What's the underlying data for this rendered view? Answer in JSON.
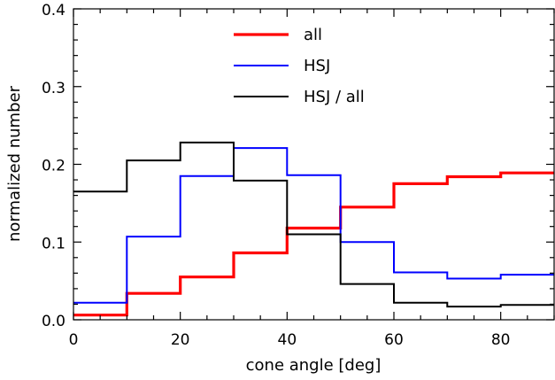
{
  "chart_data": {
    "type": "line",
    "step": true,
    "xlabel": "cone angle [deg]",
    "ylabel": "normalized number",
    "xlim": [
      0,
      90
    ],
    "ylim": [
      0.0,
      0.4
    ],
    "xticks": [
      "0",
      "20",
      "40",
      "60",
      "80"
    ],
    "yticks": [
      "0.0",
      "0.1",
      "0.2",
      "0.3",
      "0.4"
    ],
    "grid": false,
    "legend_position": "top-center",
    "bin_edges": [
      0,
      10,
      20,
      30,
      40,
      50,
      60,
      70,
      80,
      90
    ],
    "series": [
      {
        "name": "all",
        "color": "#ff0000",
        "values": [
          0.006,
          0.034,
          0.055,
          0.086,
          0.118,
          0.145,
          0.175,
          0.184,
          0.189
        ]
      },
      {
        "name": "HSJ",
        "color": "#0000ff",
        "values": [
          0.022,
          0.107,
          0.185,
          0.221,
          0.186,
          0.1,
          0.061,
          0.053,
          0.058
        ]
      },
      {
        "name": "HSJ / all",
        "color": "#000000",
        "values": [
          0.165,
          0.205,
          0.228,
          0.179,
          0.11,
          0.046,
          0.022,
          0.017,
          0.019
        ]
      }
    ]
  }
}
